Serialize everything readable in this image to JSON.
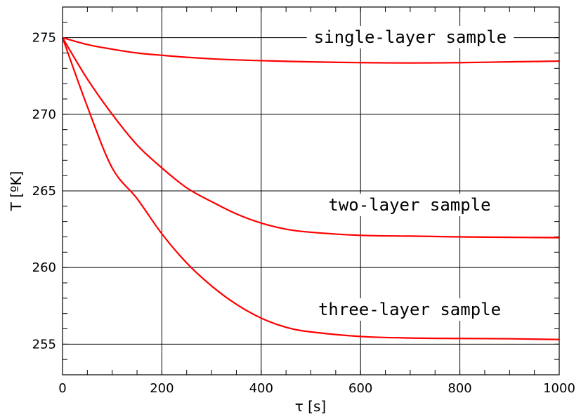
{
  "chart_data": {
    "type": "line",
    "title": "",
    "xlabel": "τ [s]",
    "ylabel": "T [ºK]",
    "xlim": [
      0,
      1000
    ],
    "ylim": [
      253,
      277
    ],
    "xticks": [
      0,
      200,
      400,
      600,
      800,
      1000
    ],
    "yticks": [
      255,
      260,
      265,
      270,
      275
    ],
    "x_minor_step": 50,
    "y_minor_step": 1,
    "grid": true,
    "line_color": "#ff0000",
    "series": [
      {
        "name": "single-layer sample",
        "x": [
          0,
          50,
          100,
          150,
          200,
          250,
          300,
          350,
          400,
          500,
          600,
          700,
          800,
          900,
          1000
        ],
        "y": [
          275.0,
          274.55,
          274.25,
          274.0,
          273.85,
          273.72,
          273.62,
          273.55,
          273.5,
          273.42,
          273.37,
          273.35,
          273.37,
          273.42,
          273.47
        ]
      },
      {
        "name": "two-layer sample",
        "x": [
          0,
          50,
          100,
          150,
          200,
          250,
          300,
          350,
          400,
          450,
          500,
          600,
          700,
          800,
          900,
          1000
        ],
        "y": [
          275.0,
          272.3,
          270.0,
          268.0,
          266.5,
          265.2,
          264.3,
          263.5,
          262.9,
          262.5,
          262.3,
          262.1,
          262.05,
          262.0,
          261.97,
          261.95
        ]
      },
      {
        "name": "three-layer sample",
        "x": [
          0,
          50,
          100,
          150,
          200,
          250,
          300,
          350,
          400,
          450,
          500,
          600,
          700,
          800,
          900,
          1000
        ],
        "y": [
          275.0,
          270.5,
          266.5,
          264.5,
          262.2,
          260.3,
          258.8,
          257.6,
          256.7,
          256.1,
          255.8,
          255.5,
          255.4,
          255.37,
          255.35,
          255.3
        ]
      }
    ]
  }
}
